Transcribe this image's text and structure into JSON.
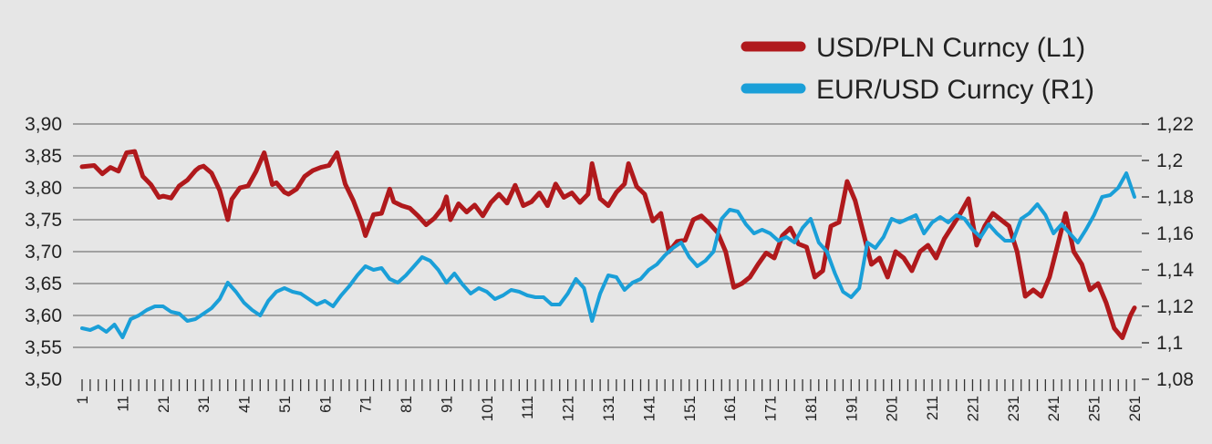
{
  "chart_data": {
    "type": "line",
    "x_tick_labels": [
      "1",
      "11",
      "21",
      "31",
      "41",
      "51",
      "61",
      "71",
      "81",
      "91",
      "101",
      "111",
      "121",
      "131",
      "141",
      "151",
      "161",
      "171",
      "181",
      "191",
      "201",
      "211",
      "221",
      "231",
      "241",
      "251",
      "261"
    ],
    "x_range": [
      1,
      261
    ],
    "left_axis": {
      "range": [
        3.5,
        3.9
      ],
      "tick_labels": [
        "3,50",
        "3,55",
        "3,60",
        "3,65",
        "3,70",
        "3,75",
        "3,80",
        "3,85",
        "3,90"
      ]
    },
    "right_axis": {
      "range": [
        1.08,
        1.22
      ],
      "tick_labels": [
        "1,08",
        "1,1",
        "1,12",
        "1,14",
        "1,16",
        "1,18",
        "1,2",
        "1,22"
      ]
    },
    "grid": true,
    "legend_position": "top-right",
    "series": [
      {
        "name": "USD/PLN Curncy (L1)",
        "axis": "left",
        "color": "#b0191c",
        "x": [
          1,
          4,
          6,
          8,
          10,
          12,
          14,
          16,
          18,
          20,
          21,
          23,
          25,
          27,
          29,
          30,
          31,
          33,
          35,
          37,
          38,
          40,
          42,
          44,
          46,
          48,
          49,
          51,
          52,
          54,
          56,
          58,
          60,
          62,
          64,
          66,
          68,
          70,
          71,
          73,
          75,
          77,
          78,
          80,
          82,
          84,
          86,
          88,
          90,
          91,
          92,
          94,
          96,
          98,
          100,
          102,
          104,
          106,
          108,
          110,
          112,
          114,
          116,
          118,
          120,
          122,
          124,
          126,
          127,
          129,
          131,
          133,
          135,
          136,
          138,
          140,
          142,
          144,
          146,
          148,
          150,
          152,
          154,
          156,
          158,
          160,
          162,
          164,
          166,
          168,
          170,
          172,
          174,
          176,
          178,
          180,
          182,
          184,
          186,
          188,
          190,
          192,
          194,
          196,
          198,
          200,
          202,
          204,
          206,
          208,
          210,
          212,
          214,
          216,
          218,
          220,
          222,
          224,
          226,
          228,
          230,
          232,
          234,
          236,
          238,
          240,
          242,
          244,
          246,
          248,
          250,
          252,
          254,
          256,
          258,
          260,
          261
        ],
        "values": [
          3.833,
          3.835,
          3.822,
          3.832,
          3.826,
          3.855,
          3.857,
          3.818,
          3.805,
          3.785,
          3.787,
          3.784,
          3.803,
          3.812,
          3.827,
          3.832,
          3.834,
          3.823,
          3.796,
          3.75,
          3.782,
          3.8,
          3.803,
          3.826,
          3.855,
          3.805,
          3.808,
          3.793,
          3.79,
          3.798,
          3.818,
          3.827,
          3.832,
          3.835,
          3.855,
          3.806,
          3.78,
          3.747,
          3.725,
          3.758,
          3.76,
          3.798,
          3.778,
          3.772,
          3.768,
          3.756,
          3.742,
          3.752,
          3.768,
          3.786,
          3.75,
          3.775,
          3.762,
          3.773,
          3.756,
          3.777,
          3.79,
          3.776,
          3.804,
          3.772,
          3.778,
          3.792,
          3.772,
          3.806,
          3.785,
          3.792,
          3.777,
          3.79,
          3.838,
          3.783,
          3.772,
          3.793,
          3.806,
          3.838,
          3.802,
          3.79,
          3.748,
          3.76,
          3.7,
          3.716,
          3.718,
          3.75,
          3.756,
          3.744,
          3.73,
          3.7,
          3.644,
          3.65,
          3.66,
          3.68,
          3.698,
          3.69,
          3.725,
          3.737,
          3.712,
          3.707,
          3.66,
          3.67,
          3.74,
          3.746,
          3.81,
          3.78,
          3.73,
          3.68,
          3.69,
          3.66,
          3.7,
          3.69,
          3.67,
          3.7,
          3.71,
          3.69,
          3.72,
          3.74,
          3.76,
          3.783,
          3.71,
          3.74,
          3.76,
          3.75,
          3.74,
          3.7,
          3.63,
          3.64,
          3.63,
          3.66,
          3.71,
          3.76,
          3.7,
          3.68,
          3.64,
          3.65,
          3.62,
          3.58,
          3.565,
          3.6,
          3.612
        ],
        "line_width": 5
      },
      {
        "name": "EUR/USD Curncy (R1)",
        "axis": "right",
        "color": "#1a9fd8",
        "x": [
          1,
          3,
          5,
          7,
          9,
          11,
          13,
          15,
          17,
          19,
          21,
          23,
          25,
          27,
          29,
          31,
          33,
          35,
          37,
          39,
          41,
          43,
          45,
          47,
          49,
          51,
          53,
          55,
          57,
          59,
          61,
          63,
          65,
          67,
          69,
          71,
          73,
          75,
          77,
          79,
          81,
          83,
          85,
          87,
          89,
          91,
          93,
          95,
          97,
          99,
          101,
          103,
          105,
          107,
          109,
          111,
          113,
          115,
          117,
          119,
          121,
          123,
          125,
          127,
          129,
          131,
          133,
          135,
          137,
          139,
          141,
          143,
          145,
          147,
          149,
          151,
          153,
          155,
          157,
          159,
          161,
          163,
          165,
          167,
          169,
          171,
          173,
          175,
          177,
          179,
          181,
          183,
          185,
          187,
          189,
          191,
          193,
          195,
          197,
          199,
          201,
          203,
          205,
          207,
          209,
          211,
          213,
          215,
          217,
          219,
          221,
          223,
          225,
          227,
          229,
          231,
          233,
          235,
          237,
          239,
          241,
          243,
          245,
          247,
          249,
          251,
          253,
          255,
          257,
          259,
          261
        ],
        "values": [
          1.108,
          1.107,
          1.109,
          1.106,
          1.11,
          1.103,
          1.113,
          1.115,
          1.118,
          1.12,
          1.12,
          1.117,
          1.116,
          1.112,
          1.113,
          1.116,
          1.119,
          1.124,
          1.133,
          1.128,
          1.122,
          1.118,
          1.115,
          1.123,
          1.128,
          1.13,
          1.128,
          1.127,
          1.124,
          1.121,
          1.123,
          1.12,
          1.126,
          1.131,
          1.137,
          1.142,
          1.14,
          1.141,
          1.135,
          1.133,
          1.137,
          1.142,
          1.147,
          1.145,
          1.14,
          1.133,
          1.138,
          1.132,
          1.127,
          1.13,
          1.128,
          1.124,
          1.126,
          1.129,
          1.128,
          1.126,
          1.125,
          1.125,
          1.121,
          1.121,
          1.127,
          1.135,
          1.13,
          1.112,
          1.127,
          1.137,
          1.136,
          1.129,
          1.133,
          1.135,
          1.14,
          1.143,
          1.148,
          1.152,
          1.155,
          1.147,
          1.142,
          1.145,
          1.15,
          1.168,
          1.173,
          1.172,
          1.165,
          1.16,
          1.162,
          1.16,
          1.156,
          1.158,
          1.155,
          1.163,
          1.168,
          1.155,
          1.15,
          1.138,
          1.128,
          1.125,
          1.13,
          1.155,
          1.152,
          1.158,
          1.168,
          1.166,
          1.168,
          1.17,
          1.16,
          1.166,
          1.169,
          1.166,
          1.17,
          1.168,
          1.162,
          1.158,
          1.165,
          1.16,
          1.156,
          1.156,
          1.168,
          1.171,
          1.176,
          1.17,
          1.16,
          1.165,
          1.16,
          1.155,
          1.162,
          1.17,
          1.18,
          1.181,
          1.185,
          1.193,
          1.18
        ]
      }
    ]
  }
}
